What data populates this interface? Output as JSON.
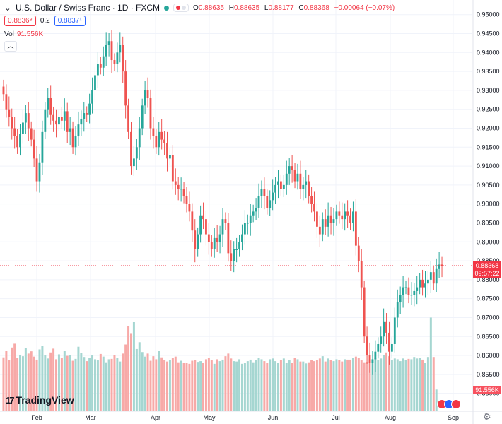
{
  "header": {
    "title": "U.S. Dollar / Swiss Franc · 1D · FXCM",
    "ohlc": [
      {
        "k": "O",
        "v": "0.88635"
      },
      {
        "k": "H",
        "v": "0.88635"
      },
      {
        "k": "L",
        "v": "0.88177"
      },
      {
        "k": "C",
        "v": "0.88368"
      }
    ],
    "change": "−0.00064 (−0.07%)",
    "bid": "0.8836⁸",
    "spread": "0.2",
    "ask": "0.8837¹",
    "volume_label": "Vol",
    "volume_value": "91.556K"
  },
  "branding": {
    "logo_text": "TradingView"
  },
  "badges": {
    "last_price": "0.88368",
    "countdown": "09:57:22",
    "volume": "91.556K"
  },
  "colors": {
    "up": "#26a69a",
    "down": "#ef5350",
    "vol_up": "#a5d6d1",
    "vol_down": "#f7a9a7"
  },
  "chart_data": {
    "type": "candlestick",
    "y_ticks": [
      "0.95000",
      "0.94500",
      "0.94000",
      "0.93500",
      "0.93000",
      "0.92500",
      "0.92000",
      "0.91500",
      "0.91000",
      "0.90500",
      "0.90000",
      "0.89500",
      "0.89000",
      "0.88500",
      "0.88000",
      "0.87500",
      "0.87000",
      "0.86500",
      "0.86000",
      "0.85500",
      "0.85000"
    ],
    "ylim": [
      0.849,
      0.952
    ],
    "x_labels": [
      "Feb",
      "Mar",
      "Apr",
      "May",
      "Jun",
      "Jul",
      "Aug",
      "Sep"
    ],
    "series": [
      {
        "name": "USDCHF",
        "close": [
          0.929,
          0.925,
          0.923,
          0.92,
          0.918,
          0.915,
          0.9185,
          0.9215,
          0.924,
          0.92,
          0.917,
          0.912,
          0.906,
          0.911,
          0.919,
          0.925,
          0.928,
          0.9235,
          0.922,
          0.921,
          0.923,
          0.922,
          0.9245,
          0.919,
          0.92,
          0.915,
          0.918,
          0.921,
          0.9225,
          0.924,
          0.9235,
          0.9265,
          0.93,
          0.934,
          0.937,
          0.936,
          0.939,
          0.942,
          0.943,
          0.938,
          0.937,
          0.94,
          0.942,
          0.935,
          0.926,
          0.919,
          0.91,
          0.912,
          0.915,
          0.92,
          0.926,
          0.93,
          0.928,
          0.92,
          0.918,
          0.915,
          0.919,
          0.917,
          0.916,
          0.912,
          0.913,
          0.906,
          0.905,
          0.904,
          0.904,
          0.902,
          0.9,
          0.898,
          0.893,
          0.888,
          0.892,
          0.897,
          0.896,
          0.892,
          0.89,
          0.888,
          0.891,
          0.89,
          0.892,
          0.896,
          0.895,
          0.887,
          0.885,
          0.888,
          0.888,
          0.89,
          0.892,
          0.895,
          0.895,
          0.897,
          0.898,
          0.899,
          0.902,
          0.904,
          0.902,
          0.899,
          0.901,
          0.903,
          0.905,
          0.906,
          0.904,
          0.905,
          0.908,
          0.91,
          0.909,
          0.906,
          0.908,
          0.904,
          0.905,
          0.906,
          0.902,
          0.9,
          0.898,
          0.894,
          0.892,
          0.896,
          0.894,
          0.897,
          0.895,
          0.896,
          0.898,
          0.897,
          0.896,
          0.898,
          0.897,
          0.895,
          0.898,
          0.889,
          0.885,
          0.878,
          0.865,
          0.86,
          0.858,
          0.859,
          0.861,
          0.863,
          0.865,
          0.869,
          0.866,
          0.861,
          0.863,
          0.87,
          0.874,
          0.876,
          0.878,
          0.878,
          0.876,
          0.876,
          0.877,
          0.878,
          0.88,
          0.878,
          0.879,
          0.88,
          0.882,
          0.879,
          0.883,
          0.884,
          0.8837
        ]
      }
    ],
    "volume": [
      0.8595,
      0.8612,
      0.8588,
      0.8621,
      0.8631,
      0.8593,
      0.8602,
      0.8598,
      0.8619,
      0.8605,
      0.8611,
      0.8597,
      0.8589,
      0.8616,
      0.8625,
      0.86,
      0.8592,
      0.8608,
      0.8618,
      0.859,
      0.8603,
      0.8594,
      0.8613,
      0.8599,
      0.8601,
      0.8586,
      0.8591,
      0.8623,
      0.8607,
      0.8596,
      0.8585,
      0.8593,
      0.86,
      0.859,
      0.8587,
      0.8604,
      0.8597,
      0.8582,
      0.859,
      0.8591,
      0.8601,
      0.8594,
      0.8584,
      0.8605,
      0.8629,
      0.8677,
      0.8659,
      0.8688,
      0.8617,
      0.8635,
      0.8609,
      0.8597,
      0.8605,
      0.8586,
      0.8598,
      0.859,
      0.8612,
      0.8595,
      0.8588,
      0.8584,
      0.8587,
      0.8593,
      0.8597,
      0.8582,
      0.8586,
      0.858,
      0.8581,
      0.8578,
      0.8586,
      0.8588,
      0.8583,
      0.8585,
      0.858,
      0.859,
      0.8593,
      0.8587,
      0.8578,
      0.859,
      0.8585,
      0.8589,
      0.8598,
      0.8605,
      0.8592,
      0.8585,
      0.8584,
      0.859,
      0.8578,
      0.8581,
      0.8585,
      0.8589,
      0.8582,
      0.8587,
      0.8594,
      0.859,
      0.8585,
      0.8581,
      0.859,
      0.8592,
      0.8585,
      0.8581,
      0.8588,
      0.8592,
      0.858,
      0.8587,
      0.8581,
      0.8594,
      0.859,
      0.8584,
      0.8584,
      0.8579,
      0.8582,
      0.8587,
      0.8585,
      0.8588,
      0.8592,
      0.8598,
      0.8584,
      0.8592,
      0.8588,
      0.8585,
      0.859,
      0.8588,
      0.8584,
      0.859,
      0.8589,
      0.8589,
      0.8593,
      0.8597,
      0.8594,
      0.8587,
      0.8582,
      0.8583,
      0.859,
      0.8587,
      0.8594,
      0.8589,
      0.8592,
      0.8601,
      0.8608,
      0.8598,
      0.8589,
      0.8592,
      0.859,
      0.8585,
      0.8592,
      0.8588,
      0.8591,
      0.859,
      0.8596,
      0.8592,
      0.8593,
      0.8589,
      0.8581,
      0.8596,
      0.87,
      0.8596,
      0.851
    ]
  }
}
